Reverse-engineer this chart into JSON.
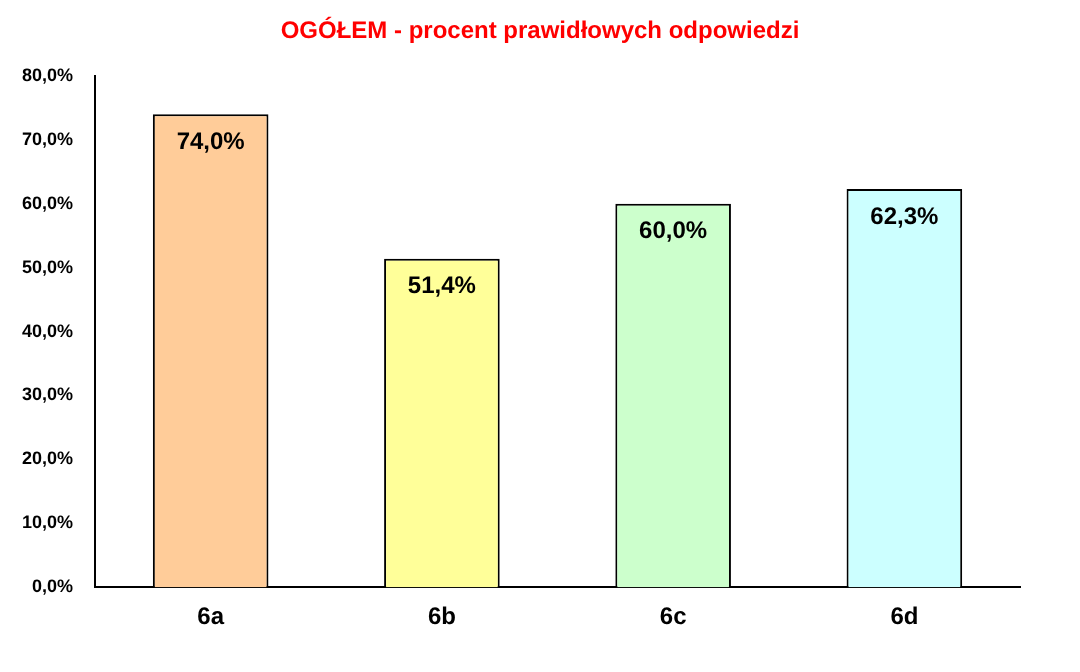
{
  "chart_data": {
    "type": "bar",
    "title": "OGÓŁEM - procent prawidłowych odpowiedzi",
    "categories": [
      "6a",
      "6b",
      "6c",
      "6d"
    ],
    "values": [
      74.0,
      51.4,
      60.0,
      62.3
    ],
    "colors": [
      "#ffcc99",
      "#ffff99",
      "#ccffcc",
      "#ccffff"
    ],
    "value_labels": [
      "74,0%",
      "51,4%",
      "60,0%",
      "62,3%"
    ],
    "ylim": [
      0,
      80
    ],
    "yticks": [
      {
        "value": 0,
        "label": "0,0%"
      },
      {
        "value": 10,
        "label": "10,0%"
      },
      {
        "value": 20,
        "label": "20,0%"
      },
      {
        "value": 30,
        "label": "30,0%"
      },
      {
        "value": 40,
        "label": "40,0%"
      },
      {
        "value": 50,
        "label": "50,0%"
      },
      {
        "value": 60,
        "label": "60,0%"
      },
      {
        "value": 70,
        "label": "70,0%"
      },
      {
        "value": 80,
        "label": "80,0%"
      }
    ],
    "grid": false,
    "legend": false
  }
}
